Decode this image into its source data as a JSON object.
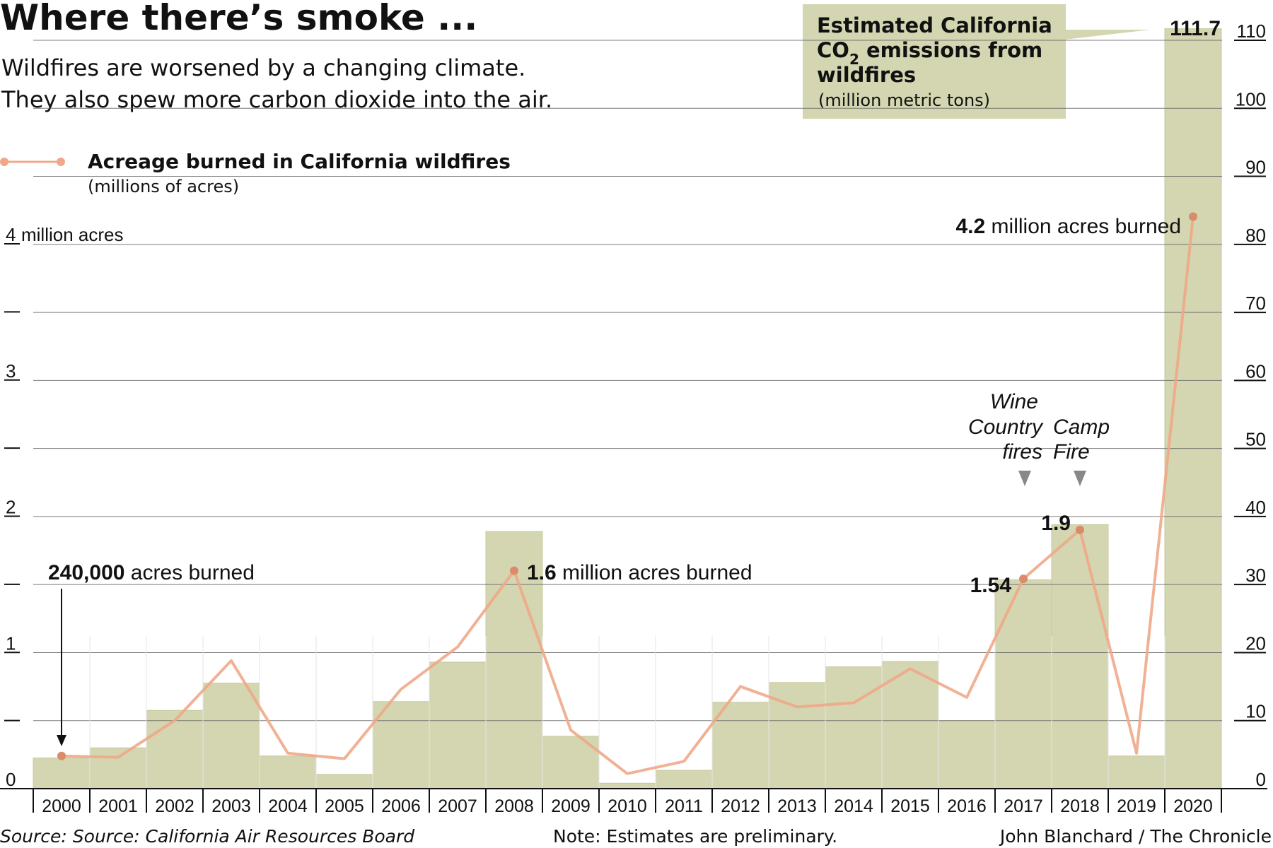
{
  "header": {
    "title": "Where there’s smoke ...",
    "subtitle_line1": "Wildfires are worsened by a changing climate.",
    "subtitle_line2": "They also spew more carbon dioxide into the air."
  },
  "legend": {
    "line_label": "Acreage burned in California wildfires",
    "line_units": "(millions of acres)",
    "bar_label_line1": "Estimated California",
    "bar_label_line2_pre": "CO",
    "bar_label_line2_sub": "2",
    "bar_label_line2_post": " emissions from",
    "bar_label_line3": "wildfires",
    "bar_units": "(million metric tons)"
  },
  "chart_data": {
    "type": "bar",
    "categories": [
      "2000",
      "2001",
      "2002",
      "2003",
      "2004",
      "2005",
      "2006",
      "2007",
      "2008",
      "2009",
      "2010",
      "2011",
      "2012",
      "2013",
      "2014",
      "2015",
      "2016",
      "2017",
      "2018",
      "2019",
      "2020"
    ],
    "series": [
      {
        "kind": "bar",
        "axis": "right",
        "values": [
          4.5,
          6,
          11.5,
          15.5,
          4.8,
          2.1,
          12.8,
          18.6,
          37.8,
          7.7,
          0.8,
          2.7,
          12.7,
          15.6,
          17.9,
          18.7,
          10,
          30.7,
          38.8,
          4.8,
          111.7
        ]
      },
      {
        "kind": "line",
        "axis": "left",
        "values": [
          0.24,
          0.23,
          0.5,
          0.94,
          0.26,
          0.22,
          0.73,
          1.04,
          1.6,
          0.43,
          0.11,
          0.2,
          0.75,
          0.6,
          0.63,
          0.88,
          0.67,
          1.54,
          1.9,
          0.26,
          4.2
        ]
      }
    ],
    "left_axis": {
      "range": [
        0,
        4
      ],
      "ticks": [
        {
          "value": 0,
          "label": "0"
        },
        {
          "value": 0.5,
          "label": ""
        },
        {
          "value": 1,
          "label": "1"
        },
        {
          "value": 1.5,
          "label": ""
        },
        {
          "value": 2,
          "label": "2"
        },
        {
          "value": 2.5,
          "label": ""
        },
        {
          "value": 3,
          "label": "3"
        },
        {
          "value": 3.5,
          "label": ""
        },
        {
          "value": 4,
          "label": "4"
        }
      ],
      "top_unit_label": "million acres"
    },
    "right_axis": {
      "range": [
        0,
        110
      ],
      "ticks": [
        0,
        10,
        20,
        30,
        40,
        50,
        60,
        70,
        80,
        90,
        100,
        110
      ]
    },
    "grid": true,
    "annotations": {
      "a2000_bold": "240,000",
      "a2000_rest": " acres burned",
      "a2008_bold": "1.6",
      "a2008_rest": " million acres burned",
      "a2017_value": "1.54",
      "a2018_value": "1.9",
      "a2020_bold": "4.2",
      "a2020_rest": " million acres burned",
      "a2020_bar_value": "111.7",
      "event_2017_line1": "Wine",
      "event_2017_line2": "Country",
      "event_2017_line3": "fires",
      "event_2018_line1": "Camp",
      "event_2018_line2": "Fire"
    }
  },
  "footer": {
    "source": "Source: Source: California Air Resources Board",
    "note": "Note: Estimates are preliminary.",
    "credit": "John Blanchard / The Chronicle"
  },
  "colors": {
    "bar": "#d3d6b0",
    "bar_edge": "#c6c99f",
    "line": "#f0a888",
    "line_dark": "#d98c6a",
    "callout_box": "#d3d6b0",
    "grid": "#666666",
    "event_marker": "#888888"
  }
}
